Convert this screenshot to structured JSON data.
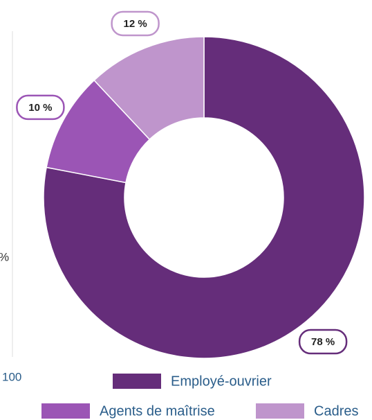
{
  "chart_data": {
    "type": "donut",
    "categories": [
      "Employé-ouvrier",
      "Agents de maîtrise",
      "Cadres"
    ],
    "values": [
      78,
      10,
      12
    ],
    "value_labels": [
      "78 %",
      "10 %",
      "12 %"
    ],
    "colors": [
      "#652d7a",
      "#9b55b5",
      "#bf95cc"
    ],
    "legend": "bottom"
  },
  "cropped_neighbor": {
    "label": "%",
    "axis_tick": "100"
  }
}
